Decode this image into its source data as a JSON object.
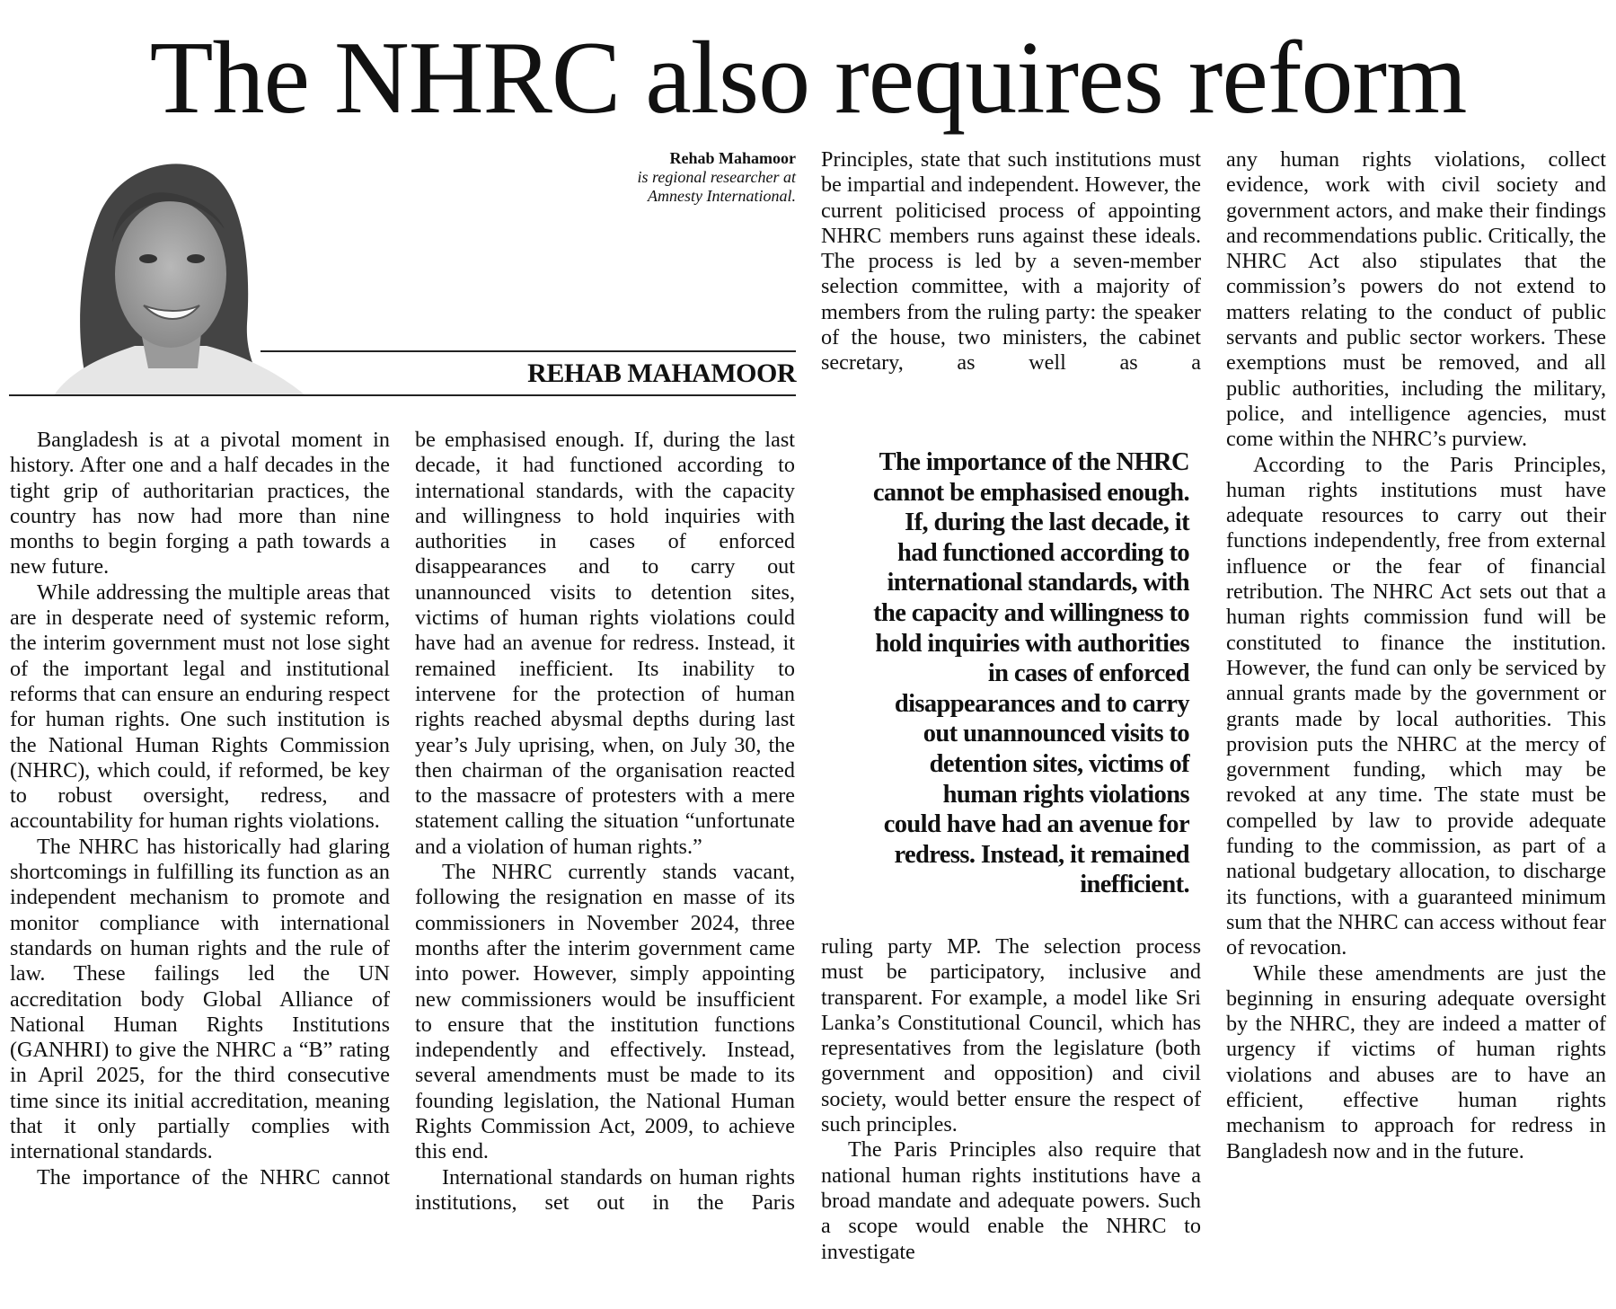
{
  "headline": "The NHRC also requires reform",
  "author": {
    "name": "Rehab Mahamoor",
    "bio_line1": "is regional researcher at",
    "bio_line2": "Amnesty International.",
    "byline": "REHAB MAHAMOOR"
  },
  "columns": [
    {
      "paragraphs": [
        {
          "text": "Bangladesh is at a pivotal moment in history. After one and a half decades in the tight grip of authoritarian practices, the country has now had more than nine months to begin forging a path towards a new future."
        },
        {
          "text": "While addressing the multiple areas that are in desperate need of systemic reform, the interim government must not lose sight of the important legal and institutional reforms that can ensure an enduring respect for human rights. One such institution is the National Human Rights Commission (NHRC), which could, if reformed, be key to robust oversight, redress, and accountability for human rights violations."
        },
        {
          "text": "The NHRC has historically had glaring shortcomings in fulfilling its function as an independent mechanism to promote and monitor compliance with international standards on human rights and the rule of law. These failings led the UN accreditation body Global Alliance of National Human Rights Institutions (GANHRI) to give the NHRC a “B” rating in April 2025, for the third consecutive time since its initial accreditation, meaning that it only partially complies with international standards."
        },
        {
          "text": "The importance of the NHRC cannot"
        }
      ]
    },
    {
      "paragraphs": [
        {
          "text": "be emphasised enough. If, during the last decade, it had functioned according to international standards, with the capacity and willingness to hold inquiries with authorities in cases of enforced disappearances and to carry out unannounced visits to detention sites, victims of human rights violations could have had an avenue for redress. Instead, it remained inefficient. Its inability to intervene for the protection of human rights reached abysmal depths during last year’s July uprising, when, on July 30, the then chairman of the organisation reacted to the massacre of protesters with a mere statement calling the situation “unfortunate and a violation of human rights.”"
        },
        {
          "text": "The NHRC currently stands vacant, following the resignation en masse of its commissioners in November 2024, three months after the interim government came into power. However, simply appointing new commissioners would be insufficient to ensure that the institution functions independently and effectively. Instead, several amendments must be made to its founding legislation, the National Human Rights Commission Act, 2009, to achieve this end."
        },
        {
          "text": "International standards on human rights institutions, set out in the Paris"
        }
      ]
    },
    {
      "top_paragraphs": [
        {
          "text": "Principles, state that such institutions must be impartial and independent. However, the current politicised process of appointing NHRC members runs against these ideals. The process is led by a seven-member selection committee, with a majority of members from the ruling party: the speaker of the house, two ministers, the cabinet secretary, as well as a"
        }
      ],
      "paragraphs": [
        {
          "text": "ruling party MP. The selection process must be participatory, inclusive and transparent. For example, a model like Sri Lanka’s Constitutional Council, which has representatives from the legislature (both government and opposition) and civil society, would better ensure the respect of such principles."
        },
        {
          "text": "The Paris Principles also require that national human rights institutions have a broad mandate and adequate powers. Such a scope would enable the NHRC to investigate"
        }
      ]
    },
    {
      "paragraphs": [
        {
          "text": "any human rights violations, collect evidence, work with civil society and government actors, and make their findings and recommendations public. Critically, the NHRC Act also stipulates that the commission’s powers do not extend to matters relating to the conduct of public servants and public sector workers. These exemptions must be removed, and all public authorities, including the military, police, and intelligence agencies, must come within the NHRC’s purview."
        },
        {
          "text": "According to the Paris Principles, human rights institutions must have adequate resources to carry out their functions independently, free from external influence or the fear of financial retribution. The NHRC Act sets out that a human rights commission fund will be constituted to finance the institution. However, the fund can only be serviced by annual grants made by the government or grants made by local authorities. This provision puts the NHRC at the mercy of government funding, which may be revoked at any time. The state must be compelled by law to provide adequate funding to the commission, as part of a national budgetary allocation, to discharge its functions, with a guaranteed minimum sum that the NHRC can access without fear of revocation."
        },
        {
          "text": "While these amendments are just the beginning in ensuring adequate oversight by the NHRC, they are indeed a matter of urgency if victims of human rights violations and abuses are to have an efficient, effective human rights mechanism to approach for redress in Bangladesh now and in the future."
        }
      ]
    }
  ],
  "pull_quote": [
    "The importance of the NHRC",
    "cannot be emphasised enough.",
    "If, during the last decade, it",
    "had functioned according to",
    "international standards, with",
    "the capacity and willingness to",
    "hold inquiries with authorities",
    "in cases of enforced",
    "disappearances and to carry",
    "out unannounced visits to",
    "detention sites, victims of",
    "human rights violations",
    "could have had an avenue for",
    "redress. Instead, it remained",
    "inefficient."
  ],
  "colors": {
    "text": "#111111",
    "background": "#ffffff"
  },
  "icons": {
    "photo": "author-portrait-grayscale"
  }
}
